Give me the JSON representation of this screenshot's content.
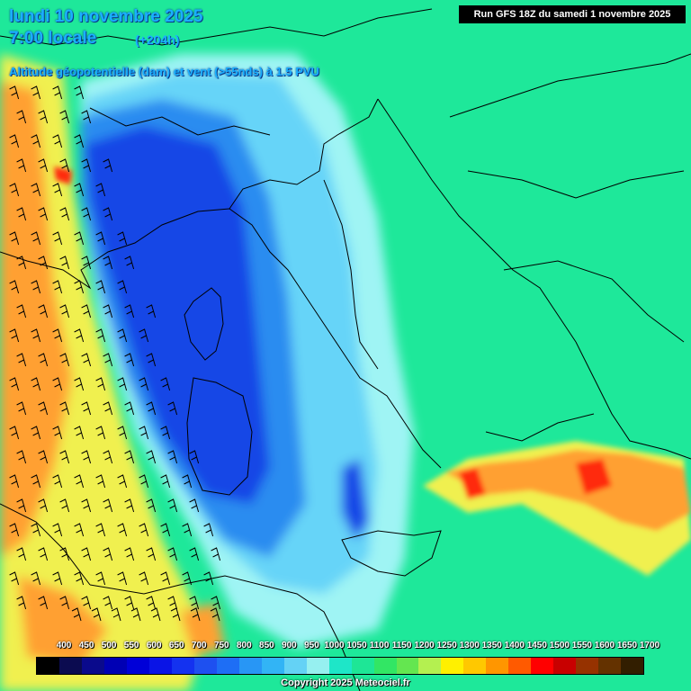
{
  "header": {
    "date": "lundi 10 novembre 2025",
    "time": "7:00 locale",
    "lead": "(+204h)",
    "subtitle": "Altitude géopotentielle (dam) et vent (>55nds) à 1.5 PVU",
    "run": "Run GFS 18Z du samedi 1 novembre 2025"
  },
  "legend": {
    "labels": [
      "400",
      "450",
      "500",
      "550",
      "600",
      "650",
      "700",
      "750",
      "800",
      "850",
      "900",
      "950",
      "1000",
      "1050",
      "1100",
      "1150",
      "1200",
      "1250",
      "1300",
      "1350",
      "1400",
      "1450",
      "1500",
      "1550",
      "1600",
      "1650",
      "1700"
    ],
    "colors": [
      "#000000",
      "#0b0b50",
      "#0a0a8c",
      "#0000b4",
      "#0000d8",
      "#0a14e6",
      "#1432f0",
      "#1e50f0",
      "#1e6ef5",
      "#2896f5",
      "#32b4f5",
      "#64d2f5",
      "#96f0f0",
      "#1ee6c8",
      "#1ee696",
      "#32e664",
      "#64e650",
      "#b4f050",
      "#fff000",
      "#ffc800",
      "#ff9600",
      "#ff5a00",
      "#ff0000",
      "#c80000",
      "#963200",
      "#643200",
      "#321e00"
    ]
  },
  "map": {
    "colors": {
      "ocean_green": "#1ee89a",
      "deep_blue": "#1446e6",
      "mid_blue": "#2a8cf0",
      "light_blue": "#66d4f8",
      "pale_cyan": "#9ff4f4",
      "yellow": "#f0f050",
      "orange": "#ffa030",
      "red": "#ff2a10"
    }
  },
  "copyright": "Copyright 2025 Meteociel.fr"
}
